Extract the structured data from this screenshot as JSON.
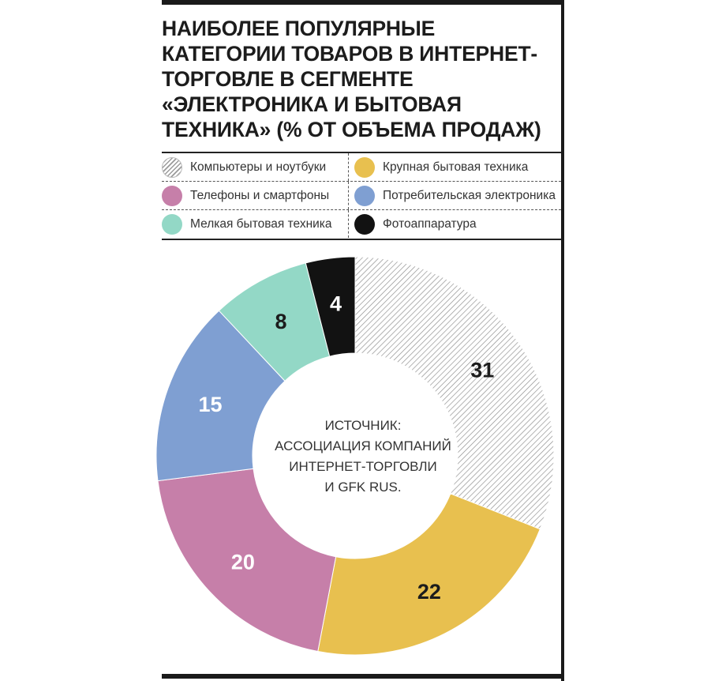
{
  "title": "НАИБОЛЕЕ ПОПУЛЯРНЫЕ\nКАТЕГОРИИ ТОВАРОВ В ИНТЕРНЕТ-\nТОРГОВЛЕ В СЕГМЕНТЕ\n«ЭЛЕКТРОНИКА И БЫТОВАЯ\nТЕХНИКА» (% ОТ ОБЪЕМА ПРОДАЖ)",
  "source_lines": [
    "ИСТОЧНИК:",
    "АССОЦИАЦИЯ КОМПАНИЙ",
    "ИНТЕРНЕТ-ТОРГОВЛИ",
    "И GFK RUS."
  ],
  "chart_data": {
    "type": "pie",
    "title": "НАИБОЛЕЕ ПОПУЛЯРНЫЕ КАТЕГОРИИ ТОВАРОВ В ИНТЕРНЕТ-ТОРГОВЛЕ В СЕГМЕНТЕ «ЭЛЕКТРОНИКА И БЫТОВАЯ ТЕХНИКА» (% ОТ ОБЪЕМА ПРОДАЖ)",
    "donut": true,
    "legend_position": "top",
    "slices": [
      {
        "label": "Компьютеры и ноутбуки",
        "value": 31,
        "color": "#ffffff",
        "pattern": "hatched",
        "text_color": "#1c1c1c"
      },
      {
        "label": "Крупная бытовая техника",
        "value": 22,
        "color": "#e8c04f",
        "text_color": "#1c1c1c"
      },
      {
        "label": "Телефоны и смартфоны",
        "value": 20,
        "color": "#c67fa9",
        "text_color": "#ffffff"
      },
      {
        "label": "Потребительская электроника",
        "value": 15,
        "color": "#7f9fd2",
        "text_color": "#ffffff"
      },
      {
        "label": "Мелкая бытовая техника",
        "value": 8,
        "color": "#93d8c6",
        "text_color": "#1c1c1c"
      },
      {
        "label": "Фотоаппаратура",
        "value": 4,
        "color": "#121212",
        "text_color": "#ffffff"
      }
    ]
  },
  "legend_layout": [
    [
      "Компьютеры и ноутбуки",
      "Крупная бытовая техника"
    ],
    [
      "Телефоны и смартфоны",
      "Потребительская электроника"
    ],
    [
      "Мелкая бытовая техника",
      "Фотоаппаратура"
    ]
  ]
}
